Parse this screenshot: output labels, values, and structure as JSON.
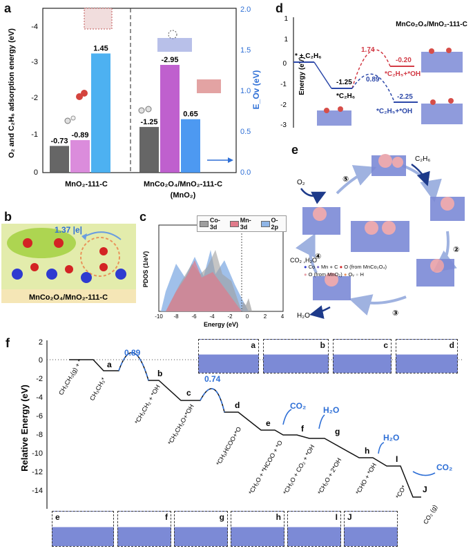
{
  "panels": {
    "a": {
      "label": "a",
      "ylabel_left": "O₂ and C₂H₆ adsorption energy (eV)",
      "ylabel_right": "E_Ov (eV)",
      "left_ticks": [
        "-4",
        "-3",
        "-2",
        "-1",
        "0"
      ],
      "right_ticks": [
        "2.0",
        "1.5",
        "1.0",
        "0.5",
        "0.0"
      ],
      "groups": [
        "MnO₂-111-C",
        "MnCo₂O₄/MnO₂-111-C",
        "(MnO₂)"
      ],
      "bars": [
        {
          "value": "-0.73",
          "v": 0.73,
          "color": "#555555",
          "axis": "left"
        },
        {
          "value": "-0.89",
          "v": 0.89,
          "color": "#d77fd8",
          "axis": "left"
        },
        {
          "value": "1.45",
          "v": 1.45,
          "color": "#3aa8f0",
          "axis": "right"
        },
        {
          "value": "-1.25",
          "v": 1.25,
          "color": "#555555",
          "axis": "left"
        },
        {
          "value": "-2.95",
          "v": 2.95,
          "color": "#b84fc9",
          "axis": "left"
        },
        {
          "value": "0.65",
          "v": 0.65,
          "color": "#3a8ef0",
          "axis": "right"
        }
      ]
    },
    "b": {
      "label": "b",
      "charge": "1.37 |e|",
      "caption": "MnCo₂O₄/MnO₂-111-C"
    },
    "c": {
      "label": "c",
      "ylabel": "PDOS (1/eV)",
      "xlabel": "Energy (eV)",
      "xticks": [
        "-10",
        "-8",
        "-6",
        "-4",
        "-2",
        "0",
        "2",
        "4"
      ],
      "legend": [
        {
          "name": "Co-3d",
          "color": "#9e9e9e"
        },
        {
          "name": "Mn-3d",
          "color": "#e07a8a"
        },
        {
          "name": "O-2p",
          "color": "#8fb5e6"
        }
      ]
    },
    "d": {
      "label": "d",
      "title": "MnCo₂O₄/MnO₂-111-C",
      "ylabel": "Energy (eV)",
      "yticks": [
        "0",
        "-1",
        "-2",
        "-3"
      ],
      "start": "* + C₂H₆",
      "ads": "*C₂H₆",
      "v_ads": "-1.25",
      "ts_red": "1.74",
      "ts_blue": "0.89",
      "end_red_value": "-0.20",
      "end_red_label": "*C₂H₅+*OH",
      "end_blue_value": "-2.25",
      "end_blue_label": "*C₂H₅+*OH"
    },
    "e": {
      "label": "e",
      "steps": [
        "①",
        "②",
        "③",
        "④",
        "⑤"
      ],
      "reactant_o2": "O₂",
      "reactant_c2h6": "C₂H₆",
      "product_h2o": "H₂O",
      "product_co2": "CO₂ ,H₂O",
      "legend": [
        "Co",
        "Mn",
        "C",
        "O (from MnCo₂O₄)",
        "O (from MnO₂)",
        "Oᵥ",
        "H"
      ]
    },
    "f": {
      "label": "f",
      "ylabel": "Relative Energy (eV)",
      "yticks": [
        "2",
        "0",
        "-2",
        "-4",
        "-6",
        "-8",
        "-10",
        "-12",
        "-14"
      ],
      "barrier1": "0.89",
      "barrier2": "0.74",
      "state_letters": [
        "a",
        "b",
        "c",
        "d",
        "e",
        "f",
        "g",
        "h",
        "I",
        "J"
      ],
      "state_labels": [
        "CH₃CH₃(g) + *",
        "CH₃CH₃*",
        "*CH₃CH₂ + *OH",
        "*CH₃CH₂O+*OH",
        "*CH₃HCOO+*O",
        "*CH₂O + *HCOO + *O",
        "*CH₂O + CO₂ + *OH",
        "*CH₂O + 2*OH",
        "*CHO + *OH",
        "*CO*",
        "CO₂ (g)"
      ],
      "release": [
        "CO₂",
        "H₂O",
        "H₂O",
        "CO₂"
      ],
      "crystal_top": [
        "a",
        "b",
        "c",
        "d"
      ],
      "crystal_bottom": [
        "e",
        "f",
        "g",
        "h",
        "I",
        "J"
      ]
    }
  }
}
